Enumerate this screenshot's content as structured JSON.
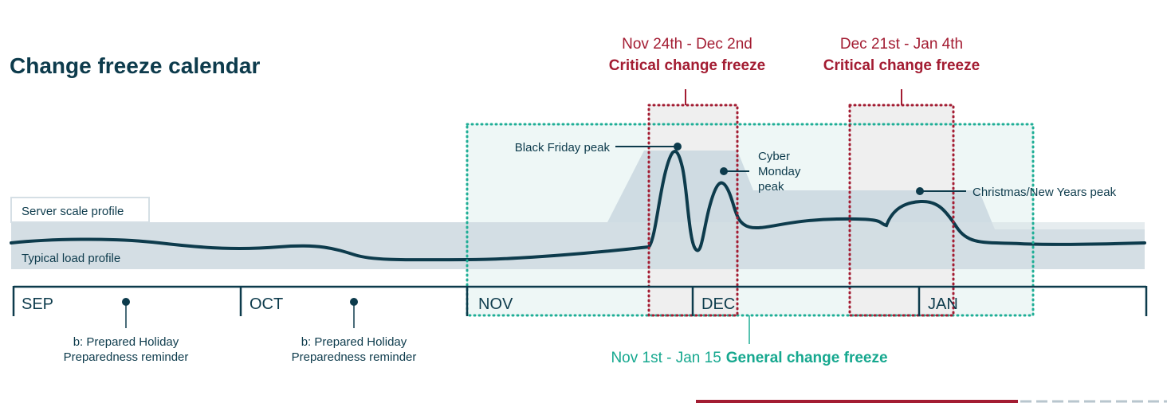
{
  "title": "Change freeze calendar",
  "colors": {
    "navy": "#0d3b4c",
    "red": "#a31c32",
    "green": "#1fae96",
    "band": "#d5dfe5",
    "scale": "#c9d7df"
  },
  "profiles": {
    "server_scale": "Server scale profile",
    "typical_load": "Typical load profile"
  },
  "months": [
    "SEP",
    "OCT",
    "NOV",
    "DEC",
    "JAN"
  ],
  "reminders": [
    {
      "line1": "b: Prepared Holiday",
      "line2": "Preparedness reminder"
    },
    {
      "line1": "b: Prepared Holiday",
      "line2": "Preparedness reminder"
    }
  ],
  "critical_freezes": [
    {
      "dates": "Nov 24th - Dec 2nd",
      "label": "Critical change freeze"
    },
    {
      "dates": "Dec 21st - Jan 4th",
      "label": "Critical change freeze"
    }
  ],
  "general_freeze": {
    "dates": "Nov 1st - Jan 15",
    "label": "General change freeze"
  },
  "peaks": {
    "black_friday": "Black Friday peak",
    "cyber_monday": [
      "Cyber",
      "Monday",
      "peak"
    ],
    "christmas": "Christmas/New Years peak"
  }
}
